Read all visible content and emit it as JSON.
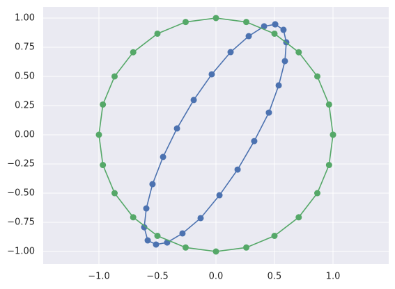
{
  "chart_data": {
    "type": "line",
    "markers": true,
    "grid": true,
    "xlim": [
      -1.476,
      1.476
    ],
    "ylim": [
      -1.107,
      1.095
    ],
    "xticks": [
      {
        "value": -1.0,
        "label": "−1.0"
      },
      {
        "value": -0.5,
        "label": "−0.5"
      },
      {
        "value": 0.0,
        "label": "0.0"
      },
      {
        "value": 0.5,
        "label": "0.5"
      },
      {
        "value": 1.0,
        "label": "1.0"
      }
    ],
    "yticks": [
      {
        "value": -1.0,
        "label": "−1.00"
      },
      {
        "value": -0.75,
        "label": "−0.75"
      },
      {
        "value": -0.5,
        "label": "−0.50"
      },
      {
        "value": -0.25,
        "label": "−0.25"
      },
      {
        "value": 0.0,
        "label": "0.00"
      },
      {
        "value": 0.25,
        "label": "0.25"
      },
      {
        "value": 0.5,
        "label": "0.50"
      },
      {
        "value": 0.75,
        "label": "0.75"
      },
      {
        "value": 1.0,
        "label": "1.00"
      }
    ],
    "series": [
      {
        "color": "#4c72b0",
        "x": [
          0.506,
          0.577,
          0.601,
          0.589,
          0.536,
          0.452,
          0.327,
          0.185,
          0.03,
          -0.131,
          -0.286,
          -0.417,
          -0.512,
          -0.583,
          -0.613,
          -0.595,
          -0.542,
          -0.452,
          -0.333,
          -0.19,
          -0.036,
          0.125,
          0.28,
          0.411,
          0.506
        ],
        "values": [
          0.946,
          0.899,
          0.792,
          0.631,
          0.423,
          0.19,
          -0.054,
          -0.298,
          -0.518,
          -0.714,
          -0.845,
          -0.923,
          -0.94,
          -0.905,
          -0.792,
          -0.631,
          -0.423,
          -0.19,
          0.054,
          0.298,
          0.518,
          0.708,
          0.845,
          0.929,
          0.946
        ]
      },
      {
        "color": "#55a868",
        "x": [
          1,
          0.966,
          0.866,
          0.707,
          0.5,
          0.259,
          0,
          -0.259,
          -0.5,
          -0.707,
          -0.866,
          -0.966,
          -1,
          -0.966,
          -0.866,
          -0.707,
          -0.5,
          -0.259,
          0,
          0.259,
          0.5,
          0.707,
          0.866,
          0.966,
          1
        ],
        "values": [
          0,
          0.259,
          0.5,
          0.707,
          0.866,
          0.966,
          1,
          0.966,
          0.866,
          0.707,
          0.5,
          0.259,
          0,
          -0.259,
          -0.5,
          -0.707,
          -0.866,
          -0.966,
          -1,
          -0.966,
          -0.866,
          -0.707,
          -0.5,
          -0.259,
          0
        ]
      }
    ]
  }
}
